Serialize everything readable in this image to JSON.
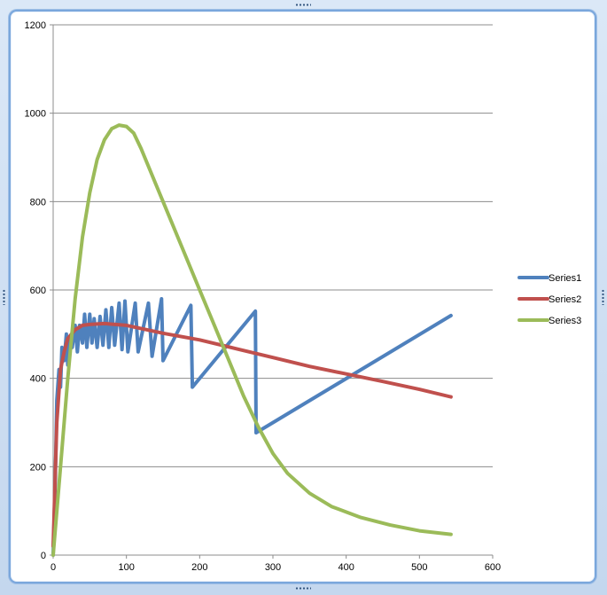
{
  "chart_data": {
    "type": "line",
    "title": "",
    "xlabel": "",
    "ylabel": "",
    "xlim": [
      0,
      600
    ],
    "ylim": [
      0,
      1200
    ],
    "x_ticks": [
      0,
      100,
      200,
      300,
      400,
      500,
      600
    ],
    "y_ticks": [
      0,
      200,
      400,
      600,
      800,
      1000,
      1200
    ],
    "grid": "horizontal",
    "legend_position": "right",
    "series": [
      {
        "name": "Series1",
        "color": "#4f81bd",
        "points": [
          [
            0,
            0
          ],
          [
            3,
            180
          ],
          [
            5,
            350
          ],
          [
            8,
            420
          ],
          [
            10,
            380
          ],
          [
            12,
            470
          ],
          [
            15,
            440
          ],
          [
            18,
            500
          ],
          [
            20,
            430
          ],
          [
            22,
            490
          ],
          [
            26,
            470
          ],
          [
            30,
            520
          ],
          [
            33,
            460
          ],
          [
            36,
            520
          ],
          [
            40,
            480
          ],
          [
            43,
            545
          ],
          [
            46,
            470
          ],
          [
            50,
            545
          ],
          [
            53,
            480
          ],
          [
            56,
            535
          ],
          [
            60,
            470
          ],
          [
            64,
            540
          ],
          [
            68,
            475
          ],
          [
            72,
            555
          ],
          [
            76,
            470
          ],
          [
            80,
            560
          ],
          [
            84,
            475
          ],
          [
            90,
            570
          ],
          [
            94,
            465
          ],
          [
            98,
            575
          ],
          [
            102,
            460
          ],
          [
            112,
            570
          ],
          [
            116,
            460
          ],
          [
            130,
            570
          ],
          [
            135,
            450
          ],
          [
            148,
            580
          ],
          [
            150,
            440
          ],
          [
            188,
            565
          ],
          [
            190,
            380
          ],
          [
            276,
            552
          ],
          [
            277,
            277
          ],
          [
            543,
            542
          ]
        ]
      },
      {
        "name": "Series2",
        "color": "#c0504d",
        "points": [
          [
            0,
            20
          ],
          [
            5,
            300
          ],
          [
            10,
            420
          ],
          [
            15,
            460
          ],
          [
            20,
            490
          ],
          [
            30,
            510
          ],
          [
            40,
            520
          ],
          [
            50,
            522
          ],
          [
            70,
            524
          ],
          [
            100,
            520
          ],
          [
            150,
            502
          ],
          [
            200,
            487
          ],
          [
            250,
            467
          ],
          [
            300,
            447
          ],
          [
            350,
            427
          ],
          [
            400,
            410
          ],
          [
            450,
            393
          ],
          [
            500,
            375
          ],
          [
            543,
            358
          ]
        ]
      },
      {
        "name": "Series3",
        "color": "#9bbb59",
        "points": [
          [
            0,
            0
          ],
          [
            10,
            200
          ],
          [
            20,
            400
          ],
          [
            30,
            580
          ],
          [
            40,
            720
          ],
          [
            50,
            820
          ],
          [
            60,
            895
          ],
          [
            70,
            940
          ],
          [
            80,
            965
          ],
          [
            90,
            973
          ],
          [
            100,
            970
          ],
          [
            110,
            955
          ],
          [
            120,
            920
          ],
          [
            140,
            840
          ],
          [
            160,
            760
          ],
          [
            180,
            680
          ],
          [
            200,
            600
          ],
          [
            220,
            520
          ],
          [
            240,
            440
          ],
          [
            260,
            360
          ],
          [
            280,
            290
          ],
          [
            300,
            230
          ],
          [
            320,
            185
          ],
          [
            350,
            140
          ],
          [
            380,
            110
          ],
          [
            420,
            85
          ],
          [
            460,
            68
          ],
          [
            500,
            55
          ],
          [
            543,
            47
          ]
        ]
      }
    ]
  }
}
